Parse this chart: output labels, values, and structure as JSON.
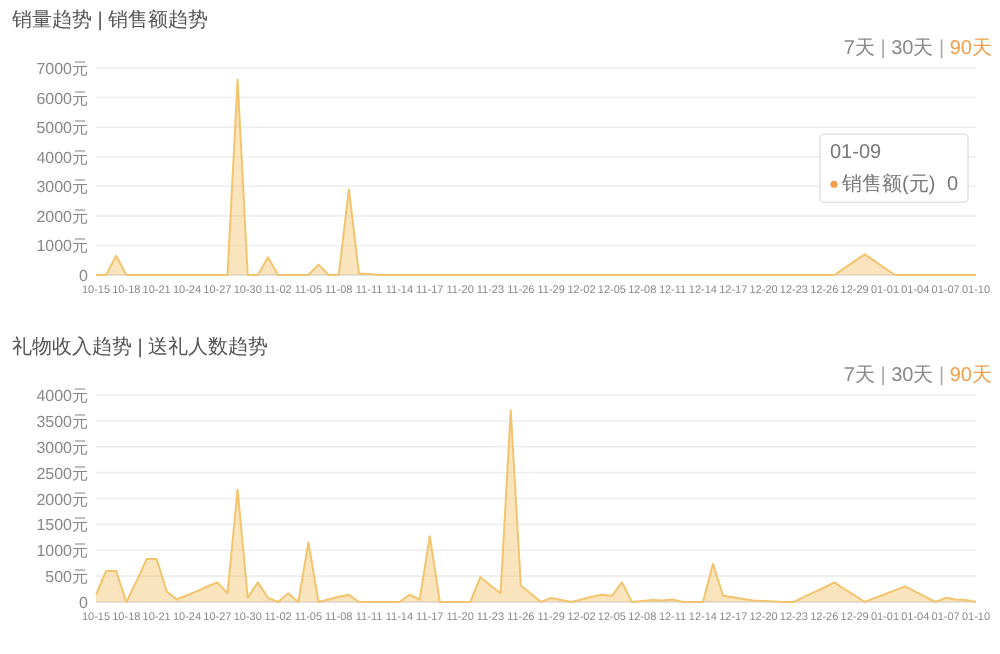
{
  "chart_data": [
    {
      "type": "area",
      "title": "销量趋势 | 销售额趋势",
      "grid": "y",
      "ylim": [
        0,
        7000
      ],
      "yticks": [
        0,
        {
          "value": 1000,
          "label": "1000元"
        },
        {
          "value": 2000,
          "label": "2000元"
        },
        {
          "value": 3000,
          "label": "3000元"
        },
        {
          "value": 4000,
          "label": "4000元"
        },
        {
          "value": 5000,
          "label": "5000元"
        },
        {
          "value": 6000,
          "label": "6000元"
        },
        {
          "value": 7000,
          "label": "7000元"
        }
      ],
      "categories": [
        "10-15",
        null,
        null,
        "10-18",
        null,
        null,
        "10-21",
        null,
        null,
        "10-24",
        null,
        null,
        "10-27",
        null,
        null,
        "10-30",
        null,
        null,
        "11-02",
        null,
        null,
        "11-05",
        null,
        null,
        "11-08",
        null,
        null,
        "11-11",
        null,
        null,
        "11-14",
        null,
        null,
        "11-17",
        null,
        null,
        "11-20",
        null,
        null,
        "11-23",
        null,
        null,
        "11-26",
        null,
        null,
        "11-29",
        null,
        null,
        "12-02",
        null,
        null,
        "12-05",
        null,
        null,
        "12-08",
        null,
        null,
        "12-11",
        null,
        null,
        "12-14",
        null,
        null,
        "12-17",
        null,
        null,
        "12-20",
        null,
        null,
        "12-23",
        null,
        null,
        "12-26",
        null,
        null,
        "12-29",
        null,
        null,
        "01-01",
        null,
        null,
        "01-04",
        null,
        null,
        "01-07",
        null,
        null,
        "01-10"
      ],
      "series": [
        {
          "color": "#f3c46e",
          "values": [
            0,
            0,
            650,
            0,
            0,
            0,
            0,
            0,
            0,
            0,
            0,
            0,
            0,
            0,
            6600,
            0,
            0,
            600,
            0,
            0,
            0,
            0,
            350,
            0,
            0,
            2900,
            50,
            30,
            0,
            0,
            0,
            0,
            0,
            0,
            0,
            0,
            0,
            0,
            0,
            0,
            0,
            0,
            0,
            0,
            0,
            0,
            0,
            0,
            0,
            0,
            0,
            0,
            0,
            0,
            0,
            0,
            0,
            0,
            0,
            0,
            0,
            0,
            0,
            0,
            0,
            0,
            0,
            0,
            0,
            0,
            0,
            0,
            0,
            0,
            230,
            470,
            700,
            470,
            230,
            0,
            0,
            0,
            0,
            0,
            0,
            0,
            0,
            0
          ]
        }
      ],
      "annotations": [
        "7天 | 30天 | 90天",
        "01-09",
        "销售额(元)",
        "0"
      ]
    },
    {
      "type": "area",
      "title": "礼物收入趋势 | 送礼人数趋势",
      "grid": "y",
      "ylim": [
        0,
        4000
      ],
      "yticks": [
        0,
        {
          "value": 500,
          "label": "500元"
        },
        {
          "value": 1000,
          "label": "1000元"
        },
        {
          "value": 1500,
          "label": "1500元"
        },
        {
          "value": 2000,
          "label": "2000元"
        },
        {
          "value": 2500,
          "label": "2500元"
        },
        {
          "value": 3000,
          "label": "3000元"
        },
        {
          "value": 3500,
          "label": "3500元"
        },
        {
          "value": 4000,
          "label": "4000元"
        }
      ],
      "categories": [
        "10-15",
        null,
        null,
        "10-18",
        null,
        null,
        "10-21",
        null,
        null,
        "10-24",
        null,
        null,
        "10-27",
        null,
        null,
        "10-30",
        null,
        null,
        "11-02",
        null,
        null,
        "11-05",
        null,
        null,
        "11-08",
        null,
        null,
        "11-11",
        null,
        null,
        "11-14",
        null,
        null,
        "11-17",
        null,
        null,
        "11-20",
        null,
        null,
        "11-23",
        null,
        null,
        "11-26",
        null,
        null,
        "11-29",
        null,
        null,
        "12-02",
        null,
        null,
        "12-05",
        null,
        null,
        "12-08",
        null,
        null,
        "12-11",
        null,
        null,
        "12-14",
        null,
        null,
        "12-17",
        null,
        null,
        "12-20",
        null,
        null,
        "12-23",
        null,
        null,
        "12-26",
        null,
        null,
        "12-29",
        null,
        null,
        "01-01",
        null,
        null,
        "01-04",
        null,
        null,
        "01-07",
        null,
        null,
        "01-10"
      ],
      "series": [
        {
          "color": "#f3c46e",
          "values": [
            140,
            600,
            600,
            0,
            400,
            830,
            830,
            200,
            50,
            130,
            210,
            300,
            380,
            170,
            2170,
            80,
            380,
            80,
            0,
            170,
            0,
            1150,
            0,
            50,
            100,
            140,
            0,
            0,
            0,
            0,
            0,
            140,
            50,
            1270,
            0,
            0,
            0,
            0,
            480,
            320,
            170,
            3700,
            320,
            160,
            0,
            80,
            40,
            0,
            50,
            100,
            140,
            120,
            380,
            0,
            20,
            40,
            30,
            50,
            0,
            0,
            0,
            740,
            120,
            90,
            60,
            30,
            20,
            10,
            0,
            0,
            100,
            190,
            280,
            380,
            250,
            130,
            0,
            80,
            150,
            230,
            300,
            200,
            100,
            0,
            80,
            50,
            40,
            0
          ]
        }
      ],
      "annotations": [
        "7天 | 30天 | 90天"
      ]
    }
  ]
}
